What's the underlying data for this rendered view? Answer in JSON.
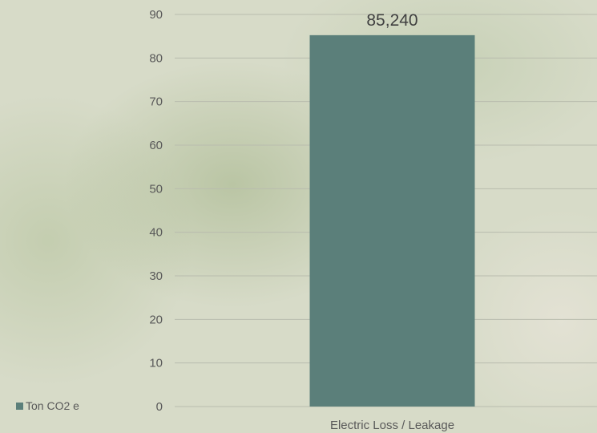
{
  "chart_data": {
    "type": "bar",
    "categories": [
      "Electric Loss / Leakage"
    ],
    "series": [
      {
        "name": "Ton CO2 e",
        "values": [
          85.24
        ],
        "data_labels": [
          "85,240"
        ]
      }
    ],
    "ylim": [
      0,
      90
    ],
    "yticks": [
      0,
      10,
      20,
      30,
      40,
      50,
      60,
      70,
      80,
      90
    ],
    "grid": true,
    "legend_position": "bottom-left",
    "colors": {
      "bar": "#5b7f7a",
      "grid": "#b9bcae",
      "text": "#595959"
    }
  }
}
